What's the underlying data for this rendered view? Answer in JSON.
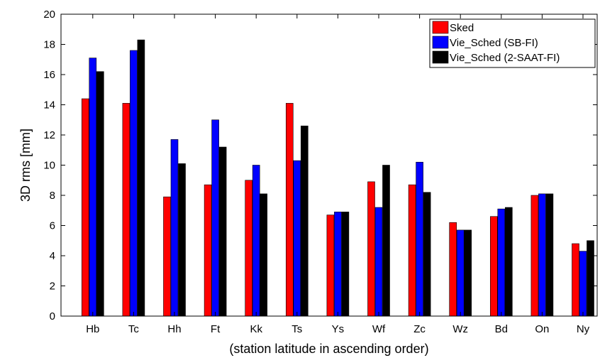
{
  "chart_data": {
    "type": "bar",
    "categories": [
      "Hb",
      "Tc",
      "Hh",
      "Ft",
      "Kk",
      "Ts",
      "Ys",
      "Wf",
      "Zc",
      "Wz",
      "Bd",
      "On",
      "Ny"
    ],
    "series": [
      {
        "name": "Sked",
        "color": "#ff0000",
        "values": [
          14.4,
          14.1,
          7.9,
          8.7,
          9.0,
          14.1,
          6.7,
          8.9,
          8.7,
          6.2,
          6.6,
          8.0,
          4.8
        ]
      },
      {
        "name": "Vie_Sched (SB-FI)",
        "color": "#0000ff",
        "values": [
          17.1,
          17.6,
          11.7,
          13.0,
          10.0,
          10.3,
          6.9,
          7.2,
          10.2,
          5.7,
          7.1,
          8.1,
          4.3
        ]
      },
      {
        "name": "Vie_Sched (2-SAAT-FI)",
        "color": "#000000",
        "values": [
          16.2,
          18.3,
          10.1,
          11.2,
          8.1,
          12.6,
          6.9,
          10.0,
          8.2,
          5.7,
          7.2,
          8.1,
          5.0
        ]
      }
    ],
    "xlabel": "(station latitude in ascending order)",
    "ylabel": "3D rms [mm]",
    "ylim": [
      0,
      20
    ],
    "yticks": [
      0,
      2,
      4,
      6,
      8,
      10,
      12,
      14,
      16,
      18,
      20
    ],
    "grid": false,
    "legend_position": "top-right"
  }
}
